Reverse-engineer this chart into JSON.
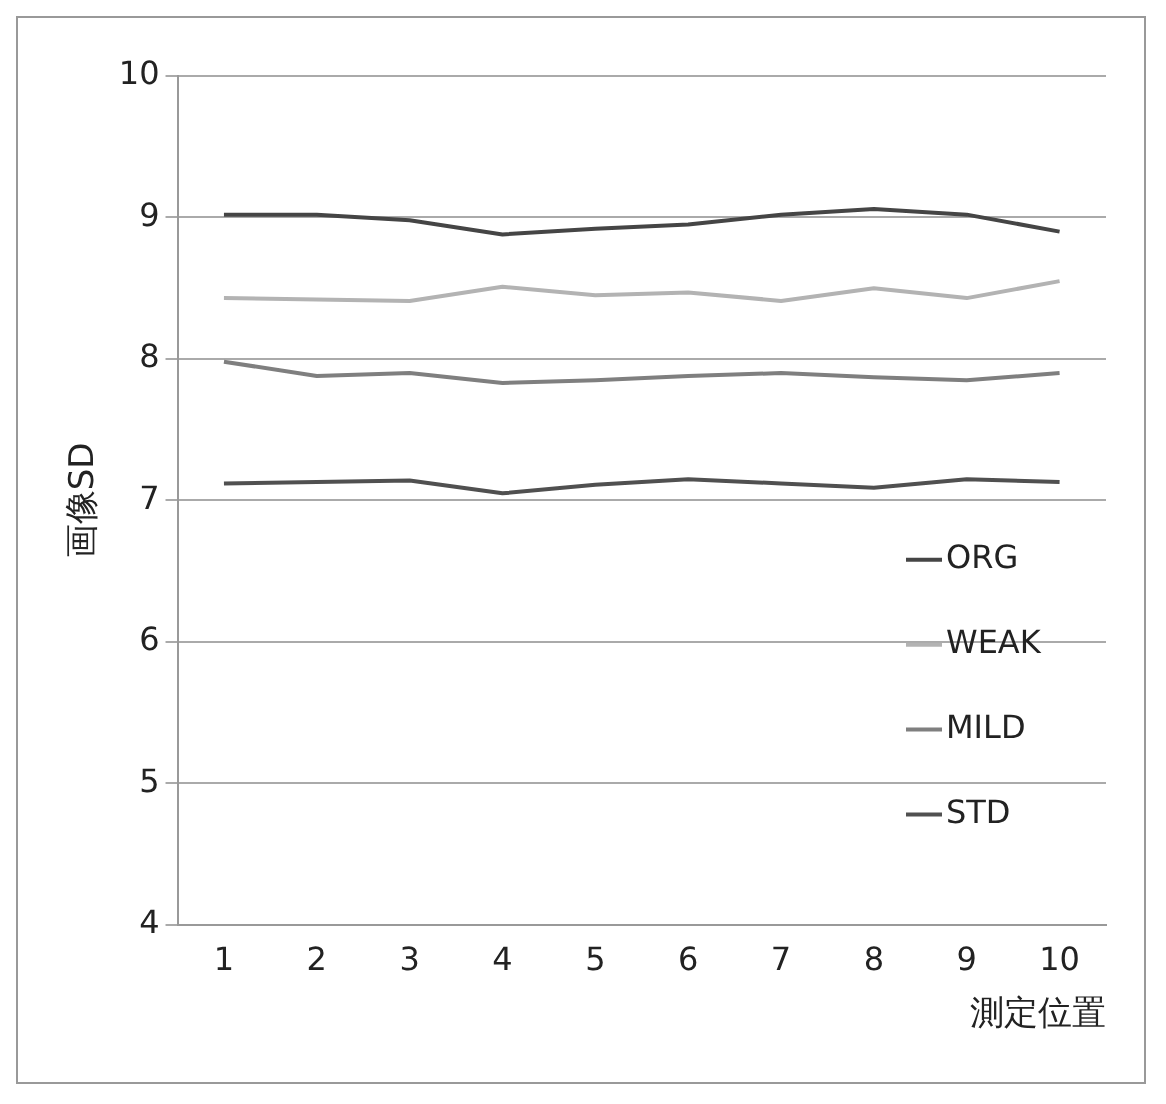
{
  "chart_data": {
    "type": "line",
    "xlabel": "測定位置",
    "ylabel": "画像SD",
    "categories": [
      "1",
      "2",
      "3",
      "4",
      "5",
      "6",
      "7",
      "8",
      "9",
      "10"
    ],
    "series": [
      {
        "name": "ORG",
        "color": "#454545",
        "values": [
          9.02,
          9.02,
          8.98,
          8.88,
          8.92,
          8.95,
          9.02,
          9.06,
          9.02,
          8.9
        ]
      },
      {
        "name": "WEAK",
        "color": "#b3b3b3",
        "values": [
          8.43,
          8.42,
          8.41,
          8.51,
          8.45,
          8.47,
          8.41,
          8.5,
          8.43,
          8.55
        ]
      },
      {
        "name": "MILD",
        "color": "#7f7f7f",
        "values": [
          7.98,
          7.88,
          7.9,
          7.83,
          7.85,
          7.88,
          7.9,
          7.87,
          7.85,
          7.9
        ]
      },
      {
        "name": "STD",
        "color": "#505050",
        "values": [
          7.12,
          7.13,
          7.14,
          7.05,
          7.11,
          7.15,
          7.12,
          7.09,
          7.15,
          7.13
        ]
      }
    ],
    "ylim": [
      4,
      10
    ],
    "yticks": [
      4,
      5,
      6,
      7,
      8,
      9,
      10
    ],
    "grid": "y",
    "legend": "right",
    "marker": "none",
    "line_style": "solid"
  }
}
